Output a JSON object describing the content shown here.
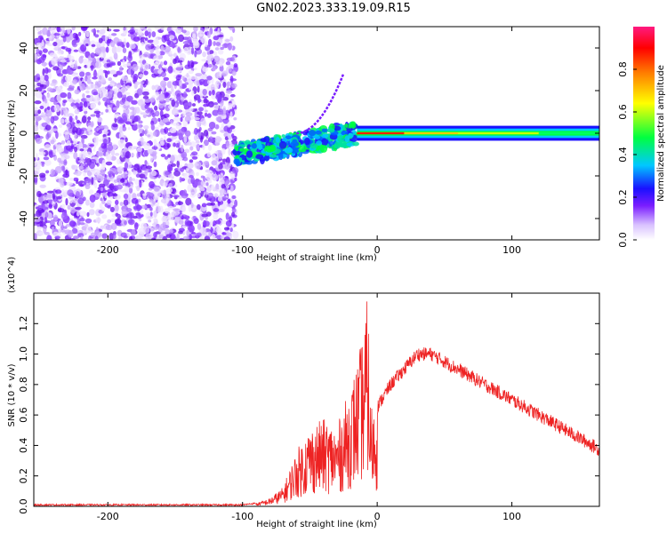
{
  "title": "GN02.2023.333.19.09.R15",
  "chart_data": [
    {
      "type": "heatmap",
      "title": "GN02.2023.333.19.09.R15",
      "xlabel": "Height of straight line (km)",
      "ylabel": "Frequency (Hz)",
      "xlim": [
        -255,
        165
      ],
      "ylim": [
        -50,
        50
      ],
      "x_ticks": [
        -200,
        -100,
        0,
        100
      ],
      "y_ticks": [
        -40,
        -20,
        0,
        20,
        40
      ],
      "colorbar": {
        "label": "Normalized spectral amplitude",
        "range": [
          0.0,
          1.0
        ],
        "ticks": [
          0.0,
          0.2,
          0.4,
          0.6,
          0.8
        ],
        "colors": [
          "#ffffff",
          "#d9c2ff",
          "#7a1dff",
          "#1a10ff",
          "#00c8ff",
          "#00ff40",
          "#ffff00",
          "#ff8000",
          "#ff0000",
          "#ff1a80"
        ]
      },
      "features": {
        "noise_region_x": [
          -255,
          -105
        ],
        "transition_x": [
          -105,
          -15
        ],
        "stable_line_x": [
          -15,
          165
        ],
        "stable_line_freq": 0,
        "chirp_x": [
          -60,
          -25
        ],
        "chirp_freq": [
          0,
          28
        ]
      }
    },
    {
      "type": "line",
      "xlabel": "Height of straight line (km)",
      "ylabel": "SNR (10 * v/v)",
      "y_multiplier": "(x10^4)",
      "xlim": [
        -255,
        165
      ],
      "ylim": [
        0,
        1.4
      ],
      "x_ticks": [
        -200,
        -100,
        0,
        100
      ],
      "y_ticks": [
        0.0,
        0.2,
        0.4,
        0.6,
        0.8,
        1.0,
        1.2
      ],
      "color": "#ee2222",
      "envelope": {
        "x": [
          -255,
          -150,
          -100,
          -90,
          -80,
          -70,
          -60,
          -50,
          -40,
          -30,
          -20,
          -15,
          -10,
          -7,
          -5,
          0,
          10,
          20,
          30,
          40,
          50,
          60,
          80,
          100,
          120,
          140,
          160,
          165
        ],
        "y": [
          0.01,
          0.01,
          0.01,
          0.02,
          0.05,
          0.12,
          0.35,
          0.5,
          0.55,
          0.5,
          0.75,
          0.9,
          1.1,
          1.35,
          0.65,
          0.65,
          0.8,
          0.9,
          1.0,
          1.0,
          0.95,
          0.9,
          0.8,
          0.7,
          0.6,
          0.5,
          0.4,
          0.37
        ]
      }
    }
  ]
}
